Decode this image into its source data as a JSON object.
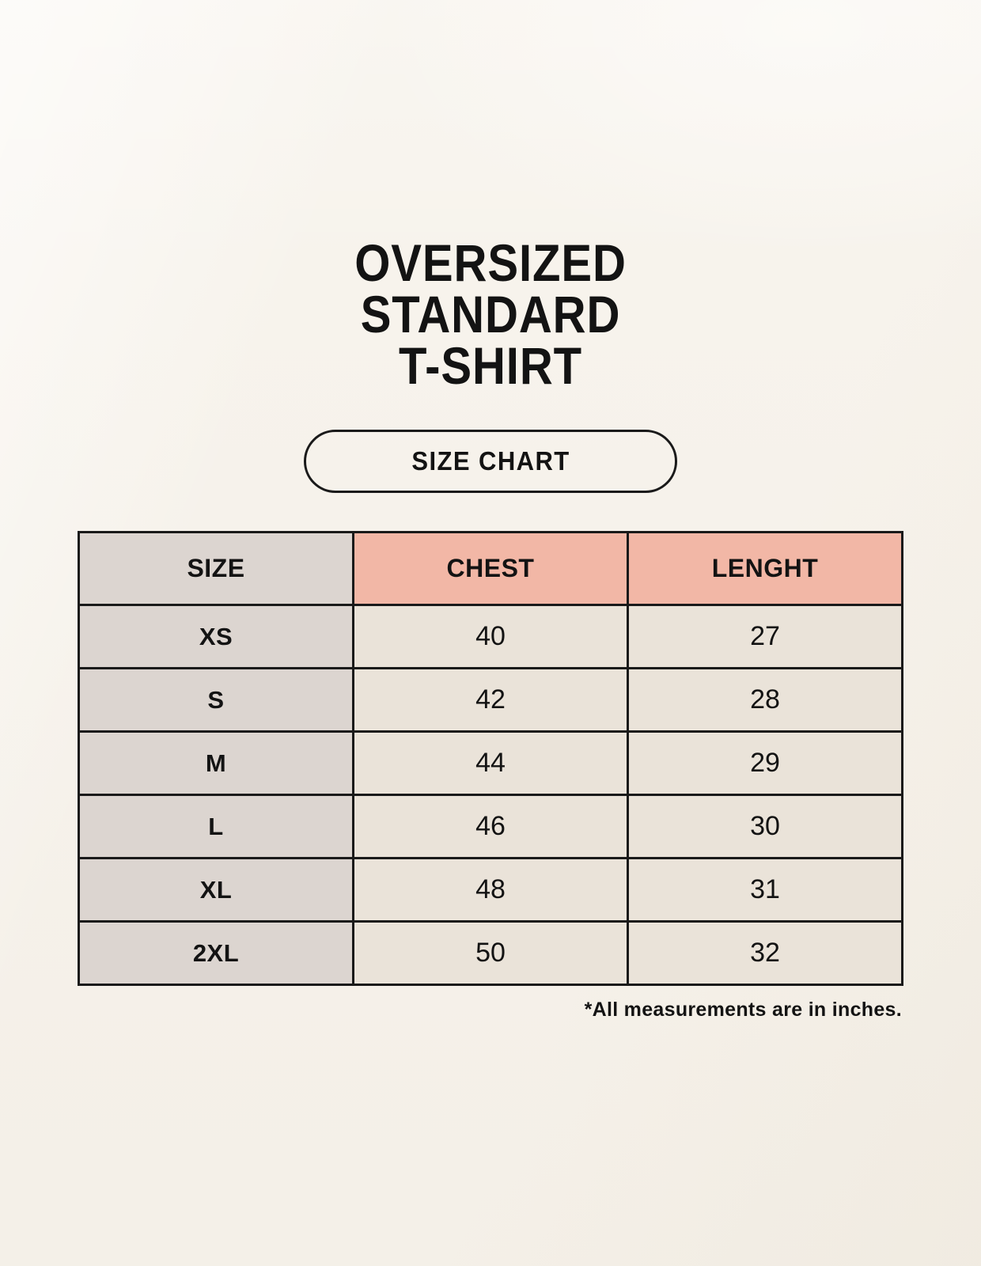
{
  "page": {
    "title_lines": [
      "OVERSIZED",
      "STANDARD",
      "T-SHIRT"
    ],
    "size_chart_label": "SIZE CHART",
    "footnote": "*All measurements are in inches."
  },
  "colors": {
    "background": "#f7f3ec",
    "header_accent": "#f2b7a6",
    "size_column": "#dcd5d0",
    "cell": "#eae3d9",
    "border": "#1a1a1a",
    "text": "#131313"
  },
  "chart_data": {
    "type": "table",
    "title": "OVERSIZED STANDARD T-SHIRT SIZE CHART",
    "columns": [
      "SIZE",
      "CHEST",
      "LENGHT"
    ],
    "rows": [
      {
        "size": "XS",
        "chest": 40,
        "length": 27
      },
      {
        "size": "S",
        "chest": 42,
        "length": 28
      },
      {
        "size": "M",
        "chest": 44,
        "length": 29
      },
      {
        "size": "L",
        "chest": 46,
        "length": 30
      },
      {
        "size": "XL",
        "chest": 48,
        "length": 31
      },
      {
        "size": "2XL",
        "chest": 50,
        "length": 32
      }
    ],
    "units": "inches",
    "layout": {
      "grid": true,
      "header_row": true
    }
  }
}
